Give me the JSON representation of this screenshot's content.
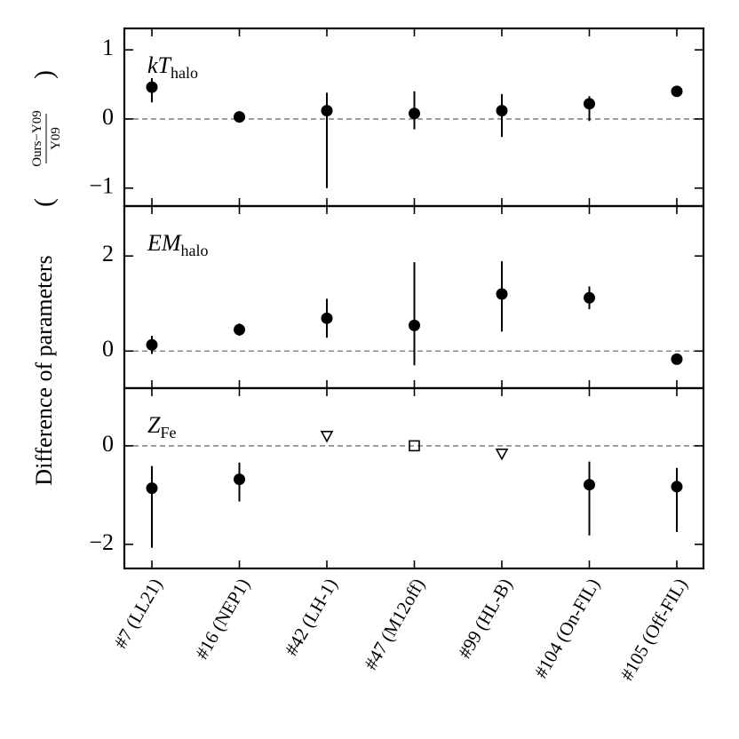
{
  "chart_data": [
    {
      "type": "errorbar",
      "ylabel": "Difference of parameters",
      "ylabel_numerator": "Ours−Y09",
      "ylabel_denominator": "Y09",
      "label_main": "kT",
      "label_sub": "halo",
      "values": [
        0.46,
        0.03,
        0.12,
        0.08,
        0.12,
        0.22,
        0.4
      ],
      "yerr_minus": [
        0.22,
        0.03,
        1.12,
        0.23,
        0.38,
        0.25,
        0.08
      ],
      "yerr_plus": [
        0.13,
        0.03,
        0.26,
        0.32,
        0.24,
        0.11,
        0.07
      ],
      "markers": [
        "circle",
        "circle",
        "circle",
        "circle",
        "circle",
        "circle",
        "circle"
      ],
      "ylim": [
        -1.26,
        1.31
      ],
      "yticks": [
        {
          "value": -1,
          "label": "−1"
        },
        0,
        1
      ],
      "hline": 0,
      "color": "#000000"
    },
    {
      "type": "errorbar",
      "label_main": "EM",
      "label_sub": "halo",
      "values": [
        0.13,
        0.45,
        0.69,
        0.54,
        1.2,
        1.12,
        -0.17
      ],
      "yerr_minus": [
        0.19,
        0.13,
        0.41,
        0.84,
        0.79,
        0.24,
        0.05
      ],
      "yerr_plus": [
        0.19,
        0.13,
        0.41,
        1.33,
        0.69,
        0.24,
        0.05
      ],
      "markers": [
        "circle",
        "circle",
        "circle",
        "circle",
        "circle",
        "circle",
        "circle"
      ],
      "ylim": [
        -0.78,
        3.05
      ],
      "yticks": [
        0,
        2
      ],
      "hline": 0,
      "color": "#000000"
    },
    {
      "type": "errorbar",
      "label_main": "Z",
      "label_sub": "Fe",
      "categories": [
        "#7 (LL21)",
        "#16 (NEP1)",
        "#42 (LH-1)",
        "#47 (M12off)",
        "#99 (HL-B)",
        "#104 (On-FIL)",
        "#105 (Off-FIL)"
      ],
      "values": [
        -0.86,
        -0.68,
        0.2,
        0.0,
        -0.16,
        -0.79,
        -0.83
      ],
      "yerr_minus": [
        1.21,
        0.45,
        null,
        null,
        null,
        1.03,
        0.92
      ],
      "yerr_plus": [
        0.45,
        0.34,
        null,
        null,
        null,
        0.47,
        0.38
      ],
      "markers": [
        "circle",
        "circle",
        "triangle_down",
        "square",
        "triangle_down",
        "circle",
        "circle"
      ],
      "ylim": [
        -2.49,
        1.17
      ],
      "yticks": [
        {
          "value": -2,
          "label": "−2"
        },
        0
      ],
      "hline": 0,
      "color": "#000000"
    }
  ]
}
